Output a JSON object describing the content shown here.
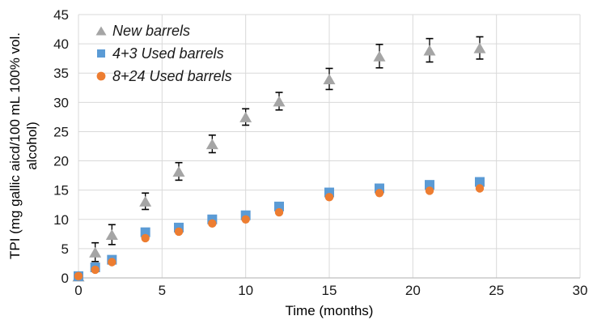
{
  "chart_data": {
    "type": "scatter",
    "title": "",
    "xlabel": "Time (months)",
    "ylabel": "TPI (mg gallic aicd/100 mL 100% vol. alcohol)",
    "ylabel_lines": [
      "TPI (mg gallic aicd/100 mL 100% vol.",
      "alcohol)"
    ],
    "xlim": [
      0,
      30
    ],
    "ylim": [
      0,
      45
    ],
    "xticks": [
      0,
      5,
      10,
      15,
      20,
      25,
      30
    ],
    "yticks": [
      0,
      5,
      10,
      15,
      20,
      25,
      30,
      35,
      40,
      45
    ],
    "grid": true,
    "legend_position": "top-left-inside",
    "x": [
      0,
      1,
      2,
      4,
      6,
      8,
      10,
      12,
      15,
      18,
      21,
      24
    ],
    "series": [
      {
        "name": "New barrels",
        "marker": "triangle",
        "color": "#a5a5a5",
        "values": [
          0.3,
          4.4,
          7.4,
          13.1,
          18.2,
          22.9,
          27.5,
          30.2,
          34.0,
          37.9,
          38.9,
          39.3
        ],
        "yerr": [
          null,
          1.6,
          1.7,
          1.4,
          1.5,
          1.5,
          1.4,
          1.5,
          1.8,
          2.0,
          2.0,
          1.9
        ]
      },
      {
        "name": "4+3 Used barrels",
        "marker": "square",
        "color": "#5b9bd5",
        "values": [
          0.3,
          1.8,
          3.1,
          7.8,
          8.6,
          10.0,
          10.7,
          12.2,
          14.6,
          15.3,
          15.9,
          16.4
        ],
        "yerr": null
      },
      {
        "name": "8+24 Used barrels",
        "marker": "circle",
        "color": "#ed7d31",
        "values": [
          0.3,
          1.4,
          2.7,
          6.8,
          7.9,
          9.3,
          10.0,
          11.2,
          13.8,
          14.5,
          14.9,
          15.3
        ],
        "yerr": null
      }
    ],
    "colors": {
      "gridline": "#d9d9d9",
      "axis_line": "#bfbfbf",
      "error_bar": "#000000",
      "tick_text": "#1a1a1a"
    }
  }
}
